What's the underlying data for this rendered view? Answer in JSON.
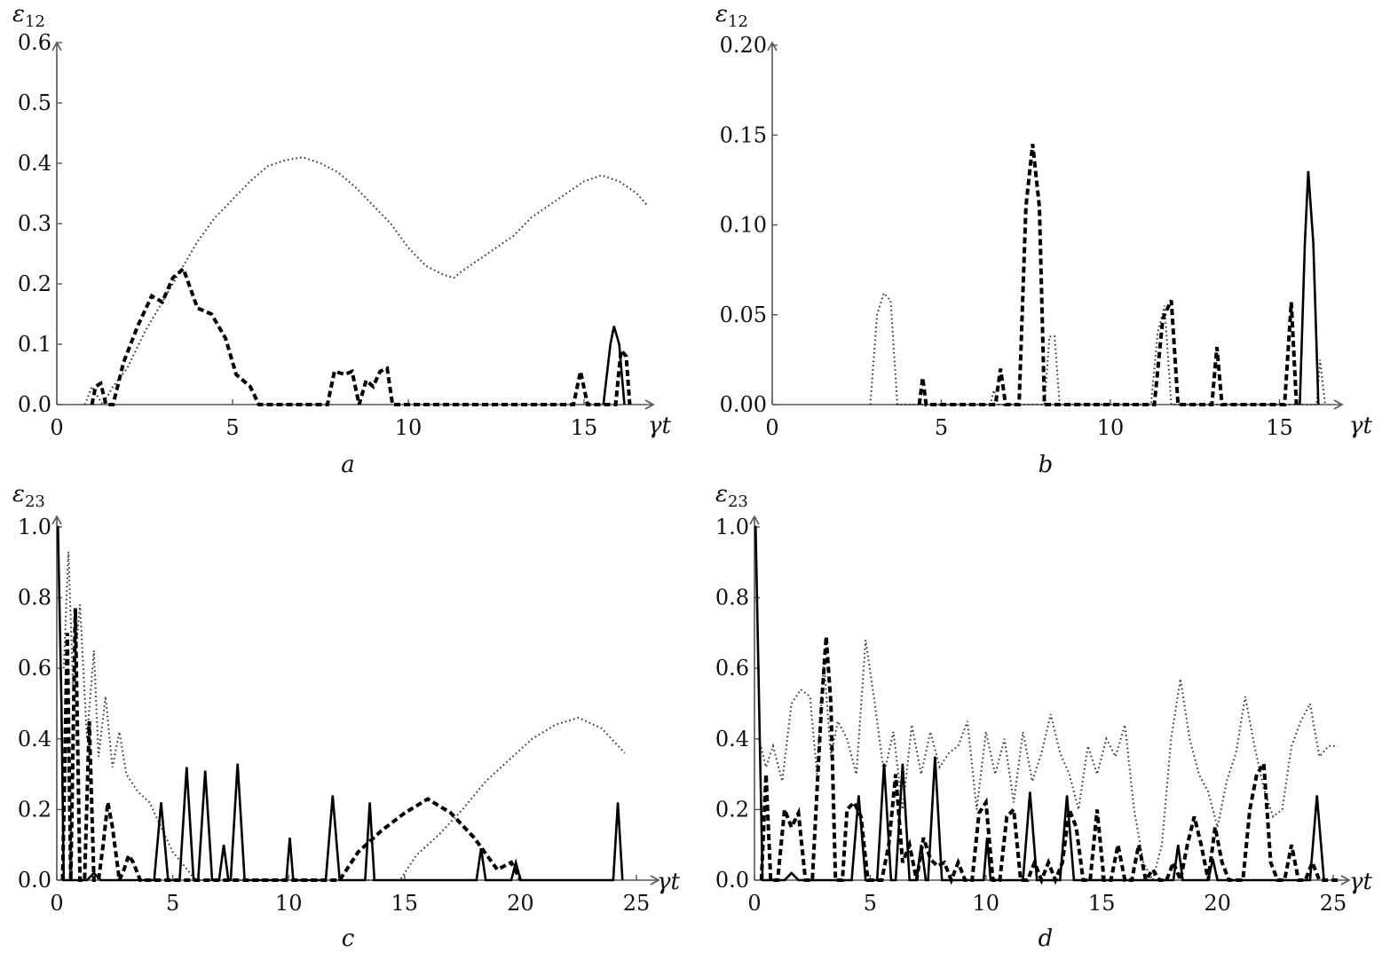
{
  "chart_data": [
    {
      "type": "line",
      "panel_label": "a",
      "xlabel": "γt",
      "ylabel": "ε12",
      "xlim": [
        0,
        17
      ],
      "ylim": [
        0,
        0.6
      ],
      "xticks": [
        0,
        5,
        10,
        15
      ],
      "xtick_labels": [
        "0",
        "5",
        "10",
        "15"
      ],
      "yticks": [
        0,
        0.1,
        0.2,
        0.3,
        0.4,
        0.5,
        0.6
      ],
      "ytick_labels": [
        "0.0",
        "0.1",
        "0.2",
        "0.3",
        "0.4",
        "0.5",
        "0.6"
      ],
      "series": [
        {
          "style": "dotted",
          "x": [
            0.8,
            1.0,
            1.3,
            1.6,
            2.0,
            2.5,
            3.0,
            3.5,
            4.0,
            4.5,
            5.0,
            5.5,
            6.0,
            6.5,
            7.0,
            7.5,
            8.0,
            8.5,
            9.0,
            9.5,
            10.0,
            10.5,
            11.0,
            11.3,
            11.5,
            12.0,
            12.5,
            13.0,
            13.5,
            14.0,
            14.5,
            15.0,
            15.5,
            16.0,
            16.5,
            16.8
          ],
          "y": [
            0.0,
            0.03,
            0.0,
            0.03,
            0.06,
            0.12,
            0.17,
            0.22,
            0.27,
            0.31,
            0.34,
            0.37,
            0.395,
            0.405,
            0.41,
            0.4,
            0.385,
            0.36,
            0.33,
            0.3,
            0.26,
            0.23,
            0.215,
            0.21,
            0.22,
            0.24,
            0.26,
            0.28,
            0.31,
            0.33,
            0.35,
            0.37,
            0.38,
            0.37,
            0.35,
            0.33
          ]
        },
        {
          "style": "dashed",
          "x": [
            1.0,
            1.1,
            1.25,
            1.4,
            1.6,
            1.9,
            2.3,
            2.7,
            3.0,
            3.3,
            3.6,
            4.0,
            4.4,
            4.8,
            5.1,
            5.5,
            5.75,
            7.7,
            7.9,
            8.2,
            8.4,
            8.6,
            8.8,
            9.0,
            9.2,
            9.4,
            9.55,
            14.7,
            14.9,
            15.1,
            15.9,
            16.05,
            16.2,
            16.3
          ],
          "y": [
            0.0,
            0.03,
            0.035,
            0.0,
            0.0,
            0.07,
            0.13,
            0.18,
            0.17,
            0.21,
            0.225,
            0.16,
            0.15,
            0.11,
            0.05,
            0.03,
            0.0,
            0.0,
            0.055,
            0.05,
            0.055,
            0.0,
            0.04,
            0.03,
            0.055,
            0.06,
            0.0,
            0.0,
            0.055,
            0.0,
            0.0,
            0.09,
            0.08,
            0.0
          ]
        },
        {
          "style": "solid",
          "x": [
            15.55,
            15.75,
            15.85,
            16.0,
            16.15
          ],
          "y": [
            0.0,
            0.1,
            0.13,
            0.1,
            0.0
          ]
        }
      ]
    },
    {
      "type": "line",
      "panel_label": "b",
      "xlabel": "γt",
      "ylabel": "ε12",
      "xlim": [
        0,
        17
      ],
      "ylim": [
        0,
        0.2
      ],
      "xticks": [
        0,
        5,
        10,
        15
      ],
      "xtick_labels": [
        "0",
        "5",
        "10",
        "15"
      ],
      "yticks": [
        0,
        0.05,
        0.1,
        0.15,
        0.2
      ],
      "ytick_labels": [
        "0.00",
        "0.05",
        "0.10",
        "0.15",
        "0.20"
      ],
      "series": [
        {
          "style": "dotted",
          "x": [
            2.9,
            3.1,
            3.3,
            3.5,
            3.7,
            6.45,
            6.55,
            6.7,
            8.05,
            8.2,
            8.35,
            8.5,
            11.2,
            11.4,
            11.6,
            11.8,
            16.1,
            16.2,
            16.35
          ],
          "y": [
            0.0,
            0.05,
            0.062,
            0.058,
            0.0,
            0.0,
            0.008,
            0.0,
            0.0,
            0.038,
            0.038,
            0.0,
            0.0,
            0.04,
            0.055,
            0.0,
            0.0,
            0.025,
            0.0
          ]
        },
        {
          "style": "dashed",
          "x": [
            4.35,
            4.45,
            4.55,
            6.6,
            6.75,
            6.9,
            7.3,
            7.5,
            7.7,
            7.9,
            8.05,
            11.3,
            11.55,
            11.8,
            12.0,
            13.0,
            13.15,
            13.3,
            15.15,
            15.35,
            15.5
          ],
          "y": [
            0.0,
            0.015,
            0.0,
            0.0,
            0.02,
            0.0,
            0.0,
            0.11,
            0.145,
            0.11,
            0.0,
            0.0,
            0.048,
            0.058,
            0.0,
            0.0,
            0.032,
            0.0,
            0.0,
            0.057,
            0.0
          ]
        },
        {
          "style": "solid",
          "x": [
            15.6,
            15.75,
            15.85,
            16.0,
            16.15
          ],
          "y": [
            0.0,
            0.09,
            0.13,
            0.09,
            0.0
          ]
        }
      ]
    },
    {
      "type": "line",
      "panel_label": "c",
      "xlabel": "γt",
      "ylabel": "ε23",
      "xlim": [
        0,
        26
      ],
      "ylim": [
        0,
        1.0
      ],
      "xticks": [
        0,
        5,
        10,
        15,
        20,
        25
      ],
      "xtick_labels": [
        "0",
        "5",
        "10",
        "15",
        "20",
        "25"
      ],
      "yticks": [
        0,
        0.2,
        0.4,
        0.6,
        0.8,
        1.0
      ],
      "ytick_labels": [
        "0.0",
        "0.2",
        "0.4",
        "0.6",
        "0.8",
        "1.0"
      ],
      "series": [
        {
          "style": "dotted",
          "x": [
            0.3,
            0.5,
            0.7,
            1.0,
            1.3,
            1.6,
            1.8,
            2.1,
            2.4,
            2.7,
            3.0,
            3.5,
            4.0,
            4.5,
            5.0,
            6.0,
            14.8,
            15.5,
            16.5,
            17.5,
            18.5,
            19.5,
            20.5,
            21.5,
            22.5,
            23.5,
            24.5
          ],
          "y": [
            0.6,
            0.93,
            0.55,
            0.78,
            0.4,
            0.65,
            0.35,
            0.52,
            0.32,
            0.42,
            0.3,
            0.25,
            0.22,
            0.15,
            0.08,
            0.0,
            0.0,
            0.07,
            0.13,
            0.2,
            0.28,
            0.34,
            0.4,
            0.44,
            0.46,
            0.43,
            0.36
          ]
        },
        {
          "style": "dashed",
          "x": [
            0.25,
            0.45,
            0.6,
            0.8,
            1.0,
            1.2,
            1.4,
            1.6,
            1.8,
            2.0,
            2.2,
            2.4,
            2.7,
            2.9,
            3.1,
            3.3,
            3.6,
            12.2,
            13.0,
            14.0,
            15.0,
            16.0,
            17.0,
            18.0,
            19.0,
            19.6,
            20.0
          ],
          "y": [
            0.0,
            0.7,
            0.0,
            0.77,
            0.0,
            0.0,
            0.45,
            0.0,
            0.0,
            0.1,
            0.22,
            0.15,
            0.0,
            0.03,
            0.07,
            0.05,
            0.0,
            0.0,
            0.08,
            0.14,
            0.19,
            0.23,
            0.19,
            0.12,
            0.03,
            0.05,
            0.0
          ]
        },
        {
          "style": "solid",
          "x": [
            0.0,
            0.05,
            0.2,
            0.3,
            1.3,
            1.6,
            1.9,
            4.2,
            4.5,
            4.8,
            5.3,
            5.6,
            5.9,
            6.1,
            6.4,
            6.7,
            7.0,
            7.2,
            7.4,
            7.5,
            7.8,
            8.1,
            9.9,
            10.05,
            10.2,
            11.6,
            11.9,
            12.2,
            13.3,
            13.5,
            13.7,
            18.1,
            18.3,
            18.5,
            19.6,
            19.8,
            20.0,
            23.3,
            23.5,
            24.0,
            24.2,
            24.4
          ],
          "y": [
            1.0,
            1.0,
            0.5,
            0.0,
            0.0,
            0.02,
            0.0,
            0.0,
            0.22,
            0.0,
            0.0,
            0.32,
            0.0,
            0.0,
            0.31,
            0.0,
            0.0,
            0.1,
            0.0,
            0.0,
            0.33,
            0.0,
            0.0,
            0.12,
            0.0,
            0.0,
            0.24,
            0.0,
            0.0,
            0.22,
            0.0,
            0.0,
            0.09,
            0.0,
            0.0,
            0.05,
            0.0,
            0.0,
            0.0,
            0.0,
            0.22,
            0.0
          ]
        }
      ]
    },
    {
      "type": "line",
      "panel_label": "d",
      "xlabel": "γt",
      "ylabel": "ε23",
      "xlim": [
        0,
        26
      ],
      "ylim": [
        0,
        1.0
      ],
      "xticks": [
        0,
        5,
        10,
        15,
        20,
        25
      ],
      "xtick_labels": [
        "0",
        "5",
        "10",
        "15",
        "20",
        "25"
      ],
      "yticks": [
        0,
        0.2,
        0.4,
        0.6,
        0.8,
        1.0
      ],
      "ytick_labels": [
        "0.0",
        "0.2",
        "0.4",
        "0.6",
        "0.8",
        "1.0"
      ],
      "series": [
        {
          "style": "dotted",
          "x": [
            0.2,
            0.5,
            0.8,
            1.2,
            1.6,
            2.0,
            2.4,
            2.7,
            3.0,
            3.3,
            3.6,
            4.0,
            4.4,
            4.8,
            5.2,
            5.6,
            6.0,
            6.4,
            6.8,
            7.2,
            7.6,
            8.0,
            8.4,
            8.8,
            9.2,
            9.6,
            10.0,
            10.4,
            10.8,
            11.2,
            11.6,
            12.0,
            12.4,
            12.8,
            13.2,
            13.6,
            14.0,
            14.4,
            14.8,
            15.2,
            15.6,
            16.0,
            16.4,
            16.8,
            17.2,
            17.6,
            18.0,
            18.4,
            18.8,
            19.2,
            19.6,
            20.0,
            20.4,
            20.8,
            21.2,
            21.6,
            22.0,
            22.4,
            22.8,
            23.2,
            23.6,
            24.0,
            24.4,
            24.8,
            25.2
          ],
          "y": [
            0.4,
            0.32,
            0.38,
            0.28,
            0.5,
            0.54,
            0.52,
            0.3,
            0.62,
            0.35,
            0.45,
            0.4,
            0.3,
            0.68,
            0.5,
            0.3,
            0.42,
            0.2,
            0.44,
            0.3,
            0.42,
            0.32,
            0.36,
            0.38,
            0.45,
            0.2,
            0.42,
            0.3,
            0.4,
            0.22,
            0.42,
            0.28,
            0.36,
            0.47,
            0.36,
            0.3,
            0.2,
            0.38,
            0.3,
            0.4,
            0.35,
            0.44,
            0.2,
            0.05,
            0.0,
            0.1,
            0.4,
            0.57,
            0.4,
            0.3,
            0.25,
            0.15,
            0.28,
            0.36,
            0.52,
            0.38,
            0.26,
            0.18,
            0.2,
            0.38,
            0.45,
            0.5,
            0.35,
            0.38,
            0.38
          ]
        },
        {
          "style": "dashed",
          "x": [
            0.3,
            0.5,
            0.7,
            1.0,
            1.3,
            1.6,
            1.9,
            2.2,
            2.5,
            2.9,
            3.1,
            3.3,
            3.5,
            3.8,
            4.0,
            4.3,
            4.6,
            4.9,
            5.2,
            5.5,
            5.8,
            6.1,
            6.4,
            6.7,
            7.0,
            7.3,
            7.6,
            7.9,
            8.2,
            8.5,
            8.8,
            9.1,
            9.4,
            9.7,
            10.0,
            10.3,
            10.6,
            10.9,
            11.2,
            11.5,
            11.8,
            12.1,
            12.4,
            12.7,
            13.0,
            13.3,
            13.6,
            13.9,
            14.2,
            14.5,
            14.8,
            15.1,
            15.4,
            15.7,
            16.0,
            16.3,
            16.6,
            16.9,
            17.2,
            17.5,
            17.8,
            18.1,
            18.4,
            18.7,
            19.0,
            19.3,
            19.6,
            19.9,
            20.2,
            20.5,
            20.8,
            21.1,
            21.4,
            21.7,
            22.0,
            22.3,
            22.6,
            22.9,
            23.2,
            23.5,
            23.8,
            24.1,
            24.4,
            24.7,
            25.0,
            25.2
          ],
          "y": [
            0.0,
            0.3,
            0.0,
            0.0,
            0.2,
            0.15,
            0.19,
            0.0,
            0.0,
            0.5,
            0.69,
            0.5,
            0.0,
            0.0,
            0.2,
            0.22,
            0.18,
            0.0,
            0.0,
            0.0,
            0.1,
            0.3,
            0.05,
            0.1,
            0.0,
            0.12,
            0.06,
            0.04,
            0.05,
            0.0,
            0.05,
            0.0,
            0.0,
            0.19,
            0.22,
            0.0,
            0.0,
            0.18,
            0.2,
            0.0,
            0.0,
            0.05,
            0.0,
            0.05,
            0.0,
            0.05,
            0.2,
            0.15,
            0.0,
            0.0,
            0.2,
            0.0,
            0.0,
            0.1,
            0.0,
            0.0,
            0.1,
            0.0,
            0.03,
            0.0,
            0.0,
            0.05,
            0.0,
            0.1,
            0.18,
            0.1,
            0.0,
            0.15,
            0.05,
            0.0,
            0.0,
            0.0,
            0.2,
            0.3,
            0.33,
            0.05,
            0.0,
            0.0,
            0.1,
            0.0,
            0.0,
            0.05,
            0.0,
            0.0,
            0.0,
            0.0
          ]
        },
        {
          "style": "solid",
          "x": [
            0.0,
            0.05,
            0.2,
            0.35,
            1.3,
            1.6,
            1.9,
            4.2,
            4.5,
            4.8,
            5.3,
            5.6,
            5.9,
            6.1,
            6.4,
            6.7,
            7.0,
            7.2,
            7.4,
            7.5,
            7.8,
            8.1,
            9.9,
            10.05,
            10.2,
            11.6,
            11.9,
            12.2,
            13.2,
            13.5,
            13.8,
            18.1,
            18.3,
            18.5,
            19.6,
            19.8,
            20.0,
            24.0,
            24.3,
            24.6
          ],
          "y": [
            1.0,
            1.0,
            0.5,
            0.0,
            0.0,
            0.02,
            0.0,
            0.0,
            0.24,
            0.0,
            0.0,
            0.33,
            0.0,
            0.0,
            0.33,
            0.0,
            0.0,
            0.1,
            0.0,
            0.0,
            0.35,
            0.0,
            0.0,
            0.12,
            0.0,
            0.0,
            0.25,
            0.0,
            0.0,
            0.24,
            0.0,
            0.0,
            0.1,
            0.0,
            0.0,
            0.06,
            0.0,
            0.0,
            0.24,
            0.0
          ]
        }
      ]
    }
  ]
}
